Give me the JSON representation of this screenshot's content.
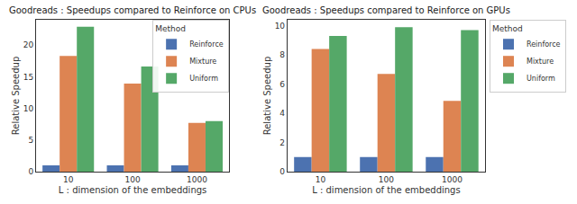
{
  "chart_data": [
    {
      "type": "bar",
      "title": "Goodreads : Speedups compared to Reinforce on CPUs",
      "x_label": "L : dimension of the embeddings",
      "y_label": "Relative Speedup",
      "categories": [
        "10",
        "100",
        "1000"
      ],
      "series": [
        {
          "name": "Reinforce",
          "color": "#4c72b0",
          "values": [
            1,
            1,
            1
          ]
        },
        {
          "name": "Mixture",
          "color": "#dd8452",
          "values": [
            18.3,
            13.9,
            7.7
          ]
        },
        {
          "name": "Uniform",
          "color": "#55a868",
          "values": [
            22.9,
            16.6,
            8.0
          ]
        }
      ],
      "ylim": [
        0,
        24
      ],
      "yticks": [
        0,
        5,
        10,
        15,
        20
      ],
      "grid": false,
      "legend": "upper right",
      "legend_title": "Method"
    },
    {
      "type": "bar",
      "title": "Goodreads : Speedups compared to Reinforce on GPUs",
      "x_label": "L : dimension of the embeddings",
      "y_label": "Relative Speedup",
      "categories": [
        "10",
        "100",
        "1000"
      ],
      "series": [
        {
          "name": "Reinforce",
          "color": "#4c72b0",
          "values": [
            1,
            1,
            1
          ]
        },
        {
          "name": "Mixture",
          "color": "#dd8452",
          "values": [
            8.4,
            6.7,
            4.85
          ]
        },
        {
          "name": "Uniform",
          "color": "#55a868",
          "values": [
            9.3,
            9.9,
            9.7
          ]
        }
      ],
      "ylim": [
        0,
        10.4
      ],
      "yticks": [
        0,
        2,
        4,
        6,
        8,
        10
      ],
      "grid": false,
      "legend": "right",
      "legend_title": "Method"
    }
  ]
}
